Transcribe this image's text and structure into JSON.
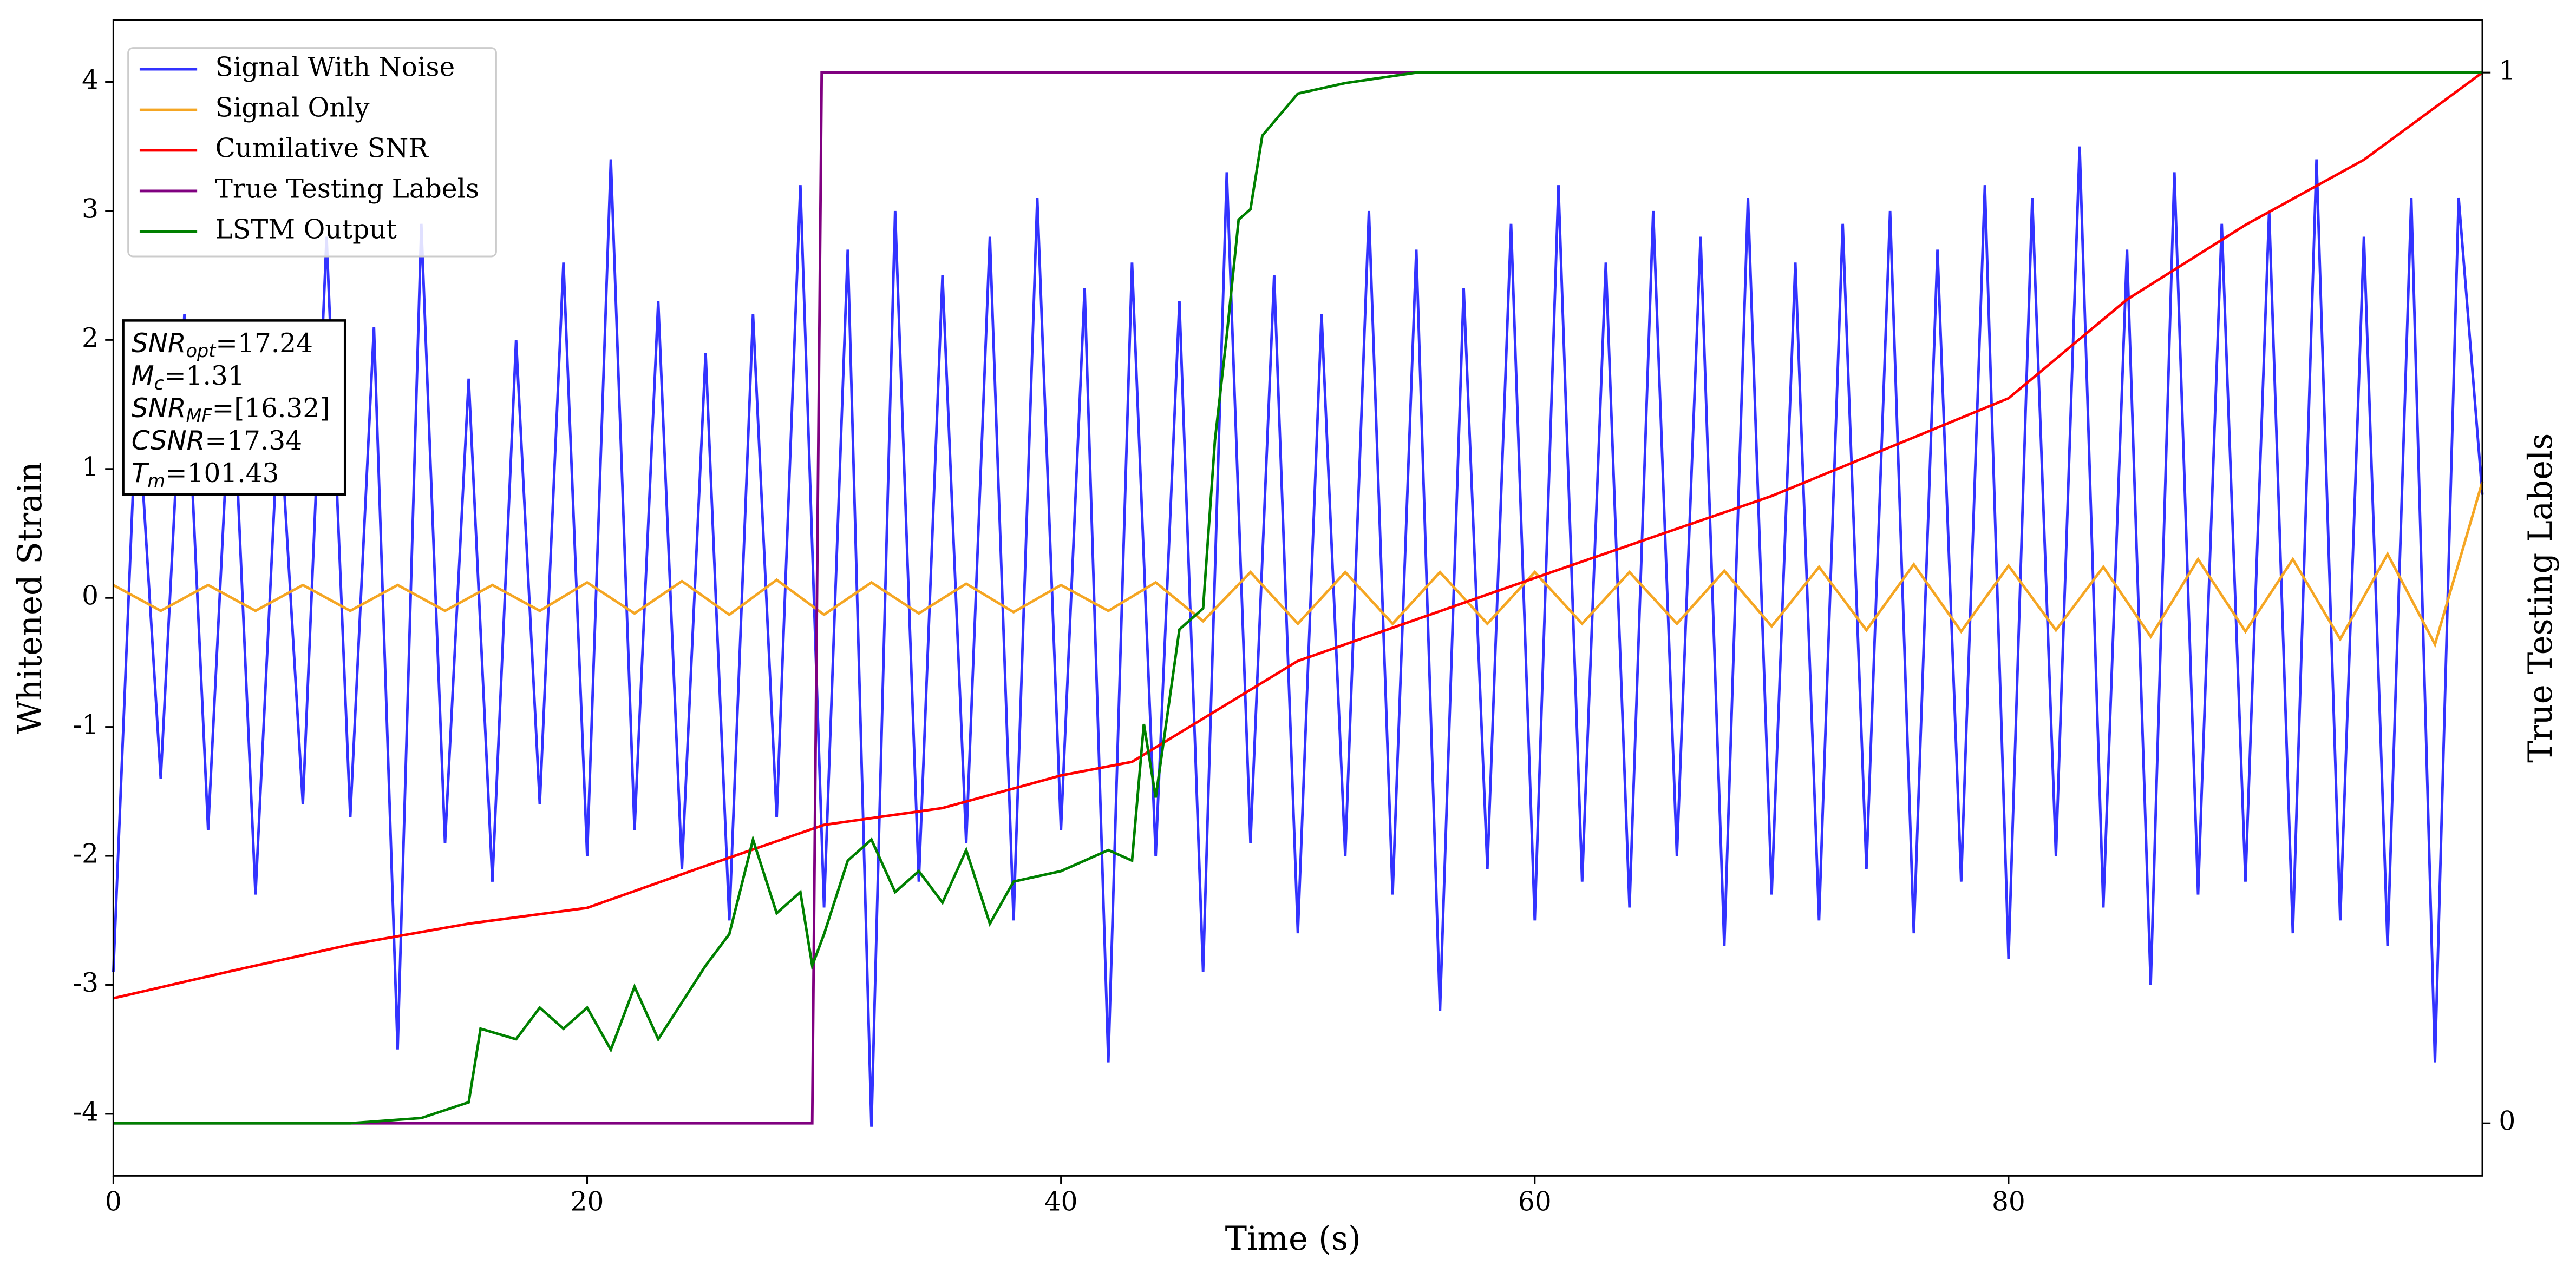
{
  "chart_data": {
    "type": "line",
    "xlabel": "Time (s)",
    "ylabel": "Whitened Strain",
    "y2label": "True Testing Labels",
    "xlim": [
      0,
      100
    ],
    "xticks": [
      0,
      20,
      40,
      60,
      80
    ],
    "ylim": [
      -4.48,
      4.48
    ],
    "yticks": [
      -4,
      -3,
      -2,
      -1,
      0,
      1,
      2,
      3,
      4
    ],
    "y2lim": [
      -0.05,
      1.05
    ],
    "y2ticks": [
      0,
      1
    ],
    "legend": "upper left",
    "annotations": [
      {
        "symbol": "SNR",
        "subscript": "opt",
        "text": "=17.24"
      },
      {
        "symbol": "M",
        "subscript": "c",
        "text": "=1.31"
      },
      {
        "symbol": "SNR",
        "subscript": "MF",
        "text": "=[16.32]"
      },
      {
        "symbol": "CSNR",
        "subscript": null,
        "text": "=17.34"
      },
      {
        "symbol": "T",
        "subscript": "m",
        "text": "=101.43"
      }
    ],
    "series": [
      {
        "name": "Signal With Noise",
        "color": "#3333ff",
        "axis": "y",
        "x": [
          0,
          1,
          2,
          3,
          4,
          5,
          6,
          7,
          8,
          9,
          10,
          11,
          12,
          13,
          14,
          15,
          16,
          17,
          18,
          19,
          20,
          21,
          22,
          23,
          24,
          25,
          26,
          27,
          28,
          29,
          30,
          31,
          32,
          33,
          34,
          35,
          36,
          37,
          38,
          39,
          40,
          41,
          42,
          43,
          44,
          45,
          46,
          47,
          48,
          49,
          50,
          51,
          52,
          53,
          54,
          55,
          56,
          57,
          58,
          59,
          60,
          61,
          62,
          63,
          64,
          65,
          66,
          67,
          68,
          69,
          70,
          71,
          72,
          73,
          74,
          75,
          76,
          77,
          78,
          79,
          80,
          81,
          82,
          83,
          84,
          85,
          86,
          87,
          88,
          89,
          90,
          91,
          92,
          93,
          94,
          95,
          96,
          97,
          98,
          99,
          100
        ],
        "values": [
          -2.9,
          1.6,
          -1.4,
          2.2,
          -1.8,
          1.9,
          -2.3,
          1.5,
          -1.6,
          2.8,
          -1.7,
          2.1,
          -3.5,
          2.9,
          -1.9,
          1.7,
          -2.2,
          2.0,
          -1.6,
          2.6,
          -2.0,
          3.4,
          -1.8,
          2.3,
          -2.1,
          1.9,
          -2.5,
          2.2,
          -1.7,
          3.2,
          -2.4,
          2.7,
          -4.1,
          3.0,
          -2.2,
          2.5,
          -1.9,
          2.8,
          -2.5,
          3.1,
          -1.8,
          2.4,
          -3.6,
          2.6,
          -2.0,
          2.3,
          -2.9,
          3.3,
          -1.9,
          2.5,
          -2.6,
          2.2,
          -2.0,
          3.0,
          -2.3,
          2.7,
          -3.2,
          2.4,
          -2.1,
          2.9,
          -2.5,
          3.2,
          -2.2,
          2.6,
          -2.4,
          3.0,
          -2.0,
          2.8,
          -2.7,
          3.1,
          -2.3,
          2.6,
          -2.5,
          2.9,
          -2.1,
          3.0,
          -2.6,
          2.7,
          -2.2,
          3.2,
          -2.8,
          3.1,
          -2.0,
          3.5,
          -2.4,
          2.7,
          -3.0,
          3.3,
          -2.3,
          2.9,
          -2.2,
          3.0,
          -2.6,
          3.4,
          -2.5,
          2.8,
          -2.7,
          3.1,
          -3.6,
          3.1,
          0.8
        ]
      },
      {
        "name": "Signal Only",
        "color": "#f5a623",
        "axis": "y",
        "x": [
          0,
          2,
          4,
          6,
          8,
          10,
          12,
          14,
          16,
          18,
          20,
          22,
          24,
          26,
          28,
          30,
          32,
          34,
          36,
          38,
          40,
          42,
          44,
          46,
          48,
          50,
          52,
          54,
          56,
          58,
          60,
          62,
          64,
          66,
          68,
          70,
          72,
          74,
          76,
          78,
          80,
          82,
          84,
          86,
          88,
          90,
          92,
          94,
          96,
          98,
          100
        ],
        "values": [
          0.1,
          -0.1,
          0.1,
          -0.1,
          0.1,
          -0.1,
          0.1,
          -0.1,
          0.1,
          -0.1,
          0.12,
          -0.12,
          0.13,
          -0.13,
          0.14,
          -0.13,
          0.12,
          -0.12,
          0.11,
          -0.11,
          0.1,
          -0.1,
          0.12,
          -0.18,
          0.2,
          -0.2,
          0.2,
          -0.2,
          0.2,
          -0.2,
          0.2,
          -0.2,
          0.2,
          -0.2,
          0.21,
          -0.22,
          0.24,
          -0.25,
          0.26,
          -0.26,
          0.25,
          -0.25,
          0.24,
          -0.3,
          0.3,
          -0.26,
          0.3,
          -0.32,
          0.34,
          -0.36,
          0.9
        ]
      },
      {
        "name": "Cumilative SNR",
        "color": "#ff0000",
        "axis": "y2",
        "x": [
          0,
          5,
          10,
          15,
          20,
          25,
          30,
          35,
          40,
          43,
          50,
          60,
          70,
          80,
          85,
          90,
          95,
          100
        ],
        "values": [
          0.119,
          0.145,
          0.17,
          0.19,
          0.205,
          0.245,
          0.284,
          0.3,
          0.331,
          0.344,
          0.44,
          0.519,
          0.597,
          0.69,
          0.784,
          0.855,
          0.917,
          1.0
        ]
      },
      {
        "name": "True Testing Labels",
        "color": "#800080",
        "axis": "y2",
        "x": [
          0,
          29.5,
          29.9,
          100
        ],
        "values": [
          0,
          0,
          1,
          1
        ]
      },
      {
        "name": "LSTM Output",
        "color": "#008000",
        "axis": "y2",
        "x": [
          0,
          10,
          13,
          15,
          15.5,
          17,
          18,
          19,
          20,
          21,
          22,
          23,
          25,
          26,
          27,
          28,
          29,
          29.5,
          30,
          31,
          32,
          33,
          34,
          35,
          36,
          37,
          38,
          40,
          42,
          43,
          43.5,
          44,
          45,
          46,
          46.5,
          47,
          47.5,
          48,
          48.5,
          50,
          52,
          55,
          100
        ],
        "values": [
          0,
          0,
          0.005,
          0.02,
          0.09,
          0.08,
          0.11,
          0.09,
          0.11,
          0.07,
          0.13,
          0.08,
          0.15,
          0.18,
          0.27,
          0.2,
          0.22,
          0.15,
          0.18,
          0.25,
          0.27,
          0.22,
          0.24,
          0.21,
          0.26,
          0.19,
          0.23,
          0.24,
          0.26,
          0.25,
          0.38,
          0.31,
          0.47,
          0.49,
          0.65,
          0.75,
          0.86,
          0.87,
          0.94,
          0.98,
          0.99,
          1.0,
          1.0
        ]
      }
    ]
  }
}
